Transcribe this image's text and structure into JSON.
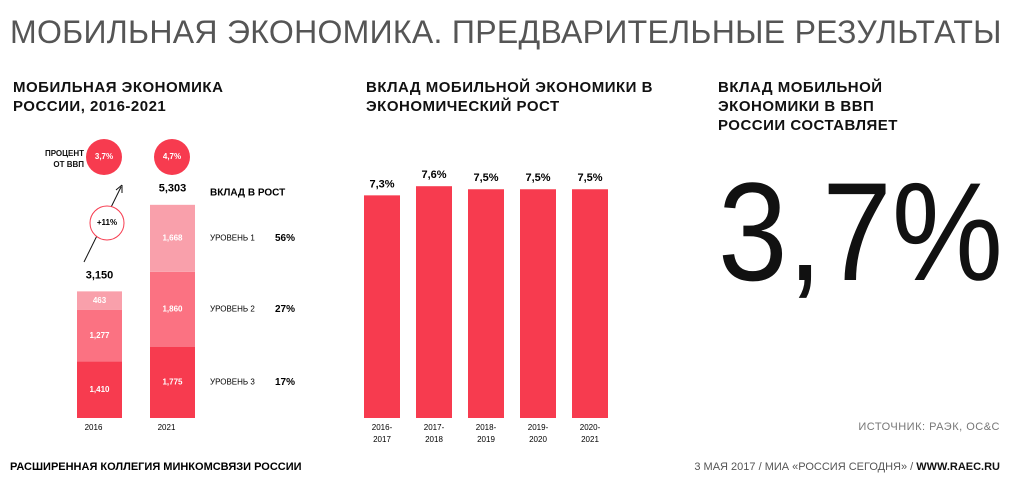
{
  "title": "МОБИЛЬНАЯ ЭКОНОМИКА. ПРЕДВАРИТЕЛЬНЫЕ РЕЗУЛЬТАТЫ",
  "chart_data": [
    {
      "type": "stacked_bar",
      "title": "МОБИЛЬНАЯ ЭКОНОМИКА РОССИИ, 2016-2021",
      "categories": [
        "2016",
        "2021"
      ],
      "series": [
        {
          "name": "УРОВЕНЬ 1",
          "color": "#f9a0ab",
          "values": [
            463,
            1668
          ],
          "value_labels": [
            "463",
            "1,668"
          ],
          "share": {
            "value": 56,
            "label": "56%"
          }
        },
        {
          "name": "УРОВЕНЬ 2",
          "color": "#fb7282",
          "values": [
            1277,
            1860
          ],
          "value_labels": [
            "1,277",
            "1,860"
          ],
          "share": {
            "value": 27,
            "label": "27%"
          }
        },
        {
          "name": "УРОВЕНЬ 3",
          "color": "#f73b4f",
          "values": [
            1410,
            1775
          ],
          "value_labels": [
            "1,410",
            "1,775"
          ],
          "share": {
            "value": 17,
            "label": "17%"
          }
        }
      ],
      "totals": [
        {
          "value": 3150,
          "label": "3,150"
        },
        {
          "value": 5303,
          "label": "5,303"
        }
      ],
      "gdp_label": "ПРОЦЕНТ ОТ ВВП",
      "gdp_share": [
        {
          "value": 3.7,
          "label": "3,7%"
        },
        {
          "value": 4.7,
          "label": "4,7%"
        }
      ],
      "growth_annotation": "+11%",
      "legend_title": "ВКЛАД В РОСТ"
    },
    {
      "type": "bar",
      "title": "ВКЛАД МОБИЛЬНОЙ ЭКОНОМИКИ В ЭКОНОМИЧЕСКИЙ РОСТ",
      "categories": [
        "2016-2017",
        "2017-2018",
        "2018-2019",
        "2019-2020",
        "2020-2021"
      ],
      "values": [
        7.3,
        7.6,
        7.5,
        7.5,
        7.5
      ],
      "value_labels": [
        "7,3%",
        "7,6%",
        "7,5%",
        "7,5%",
        "7,5%"
      ],
      "color": "#f73b4f"
    }
  ],
  "highlight": {
    "title": "ВКЛАД МОБИЛЬНОЙ ЭКОНОМИКИ В ВВП РОССИИ СОСТАВЛЯЕТ",
    "value": 3.7,
    "label": "3,7%"
  },
  "source": "ИСТОЧНИК: РАЭК, ОС&С",
  "footer": {
    "left": "РАСШИРЕННАЯ КОЛЛЕГИЯ МИНКОМСВЯЗИ РОССИИ",
    "right": "3 МАЯ 2017 / МИА «РОССИЯ СЕГОДНЯ» / ",
    "site": "WWW.RAEC.RU"
  }
}
